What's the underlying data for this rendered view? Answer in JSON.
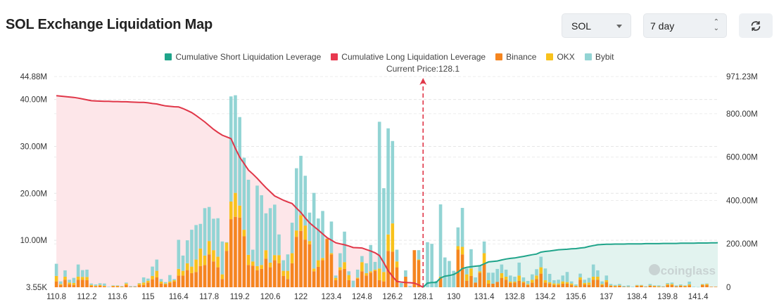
{
  "header": {
    "title": "SOL Exchange Liquidation Map",
    "symbol_select": {
      "value": "SOL",
      "icon": "caret-down-icon"
    },
    "range_select": {
      "value": "7 day",
      "icon": "up-down-chevron-icon"
    },
    "refresh_button": {
      "icon": "refresh-icon"
    }
  },
  "legend": [
    {
      "label": "Cumulative Short Liquidation Leverage",
      "color": "#1fa48a"
    },
    {
      "label": "Cumulative Long Liquidation Leverage",
      "color": "#e8384f"
    },
    {
      "label": "Binance",
      "color": "#f5851f"
    },
    {
      "label": "OKX",
      "color": "#f8c21c"
    },
    {
      "label": "Bybit",
      "color": "#92d4d4"
    }
  ],
  "current_price_label": "Current Price:128.1",
  "watermark": "coinglass",
  "chart_data": {
    "type": "bar",
    "stacked": true,
    "grid": true,
    "legend_position": "top",
    "x_tick_labels": [
      "110.8",
      "112.2",
      "113.6",
      "115",
      "116.4",
      "117.8",
      "119.2",
      "120.6",
      "122",
      "123.4",
      "124.8",
      "126.2",
      "128.1",
      "130",
      "131.4",
      "132.8",
      "134.2",
      "135.6",
      "137",
      "138.4",
      "139.8",
      "141.4"
    ],
    "current_price": 128.1,
    "y_left": {
      "min": 0,
      "max": 44.88,
      "unit": "M",
      "tick_labels": [
        "3.55K",
        "10.00M",
        "20.00M",
        "30.00M",
        "40.00M",
        "44.88M"
      ],
      "tick_values": [
        0,
        10,
        20,
        30,
        40,
        44.88
      ]
    },
    "y_right": {
      "min": 0,
      "max": 971.23,
      "unit": "M",
      "tick_labels": [
        "0",
        "200.00M",
        "400.00M",
        "600.00M",
        "800.00M",
        "971.23M"
      ],
      "tick_values": [
        0,
        200,
        400,
        600,
        800,
        971.23
      ]
    },
    "bars_binance_okx_bybit_M": [
      [
        1.25,
        1.15,
        2.6
      ],
      [
        0.5,
        0.2,
        0.55
      ],
      [
        1.6,
        0.65,
        1.35
      ],
      [
        0.6,
        0.4,
        0.6
      ],
      [
        0.5,
        0.4,
        1.1
      ],
      [
        1.6,
        0.65,
        2.6
      ],
      [
        1.6,
        0.6,
        1.45
      ],
      [
        1.5,
        0.7,
        1.55
      ],
      [
        0.3,
        0.2,
        0.3
      ],
      [
        0.2,
        0.1,
        0.3
      ],
      [
        0.3,
        0.2,
        0.35
      ],
      [
        0.2,
        0.1,
        0.5
      ],
      [
        0,
        0,
        0.1
      ],
      [
        0.2,
        0.1,
        0.1
      ],
      [
        0.2,
        0.1,
        0.1
      ],
      [
        0.1,
        0.05,
        0.1
      ],
      [
        0.5,
        0.3,
        0.2
      ],
      [
        0.1,
        0,
        0.15
      ],
      [
        0.1,
        0,
        0.15
      ],
      [
        0.5,
        0.3,
        0.1
      ],
      [
        0.5,
        0.5,
        1.1
      ],
      [
        1.0,
        0.4,
        0.45
      ],
      [
        1.7,
        0.7,
        2.0
      ],
      [
        2.1,
        1.4,
        2.4
      ],
      [
        0.8,
        0.4,
        0.55
      ],
      [
        0.6,
        0.2,
        0.3
      ],
      [
        0.9,
        0.3,
        1.4
      ],
      [
        1.2,
        0.3,
        0.25
      ],
      [
        2.5,
        1.4,
        6.2
      ],
      [
        2.5,
        1.0,
        3.25
      ],
      [
        3.65,
        1.45,
        4.9
      ],
      [
        3.0,
        1.4,
        7.85
      ],
      [
        3.25,
        2.65,
        7.35
      ],
      [
        4.5,
        3.75,
        5.25
      ],
      [
        4.75,
        2.0,
        10.1
      ],
      [
        7.0,
        2.85,
        7.25
      ],
      [
        5.5,
        2.4,
        6.7
      ],
      [
        4.25,
        2.25,
        8.2
      ],
      [
        1.75,
        1.0,
        7.0
      ],
      [
        7.75,
        1.75,
        0.1
      ],
      [
        14.5,
        3.75,
        22.4
      ],
      [
        15.0,
        5.1,
        20.8
      ],
      [
        14.85,
        2.55,
        18.85
      ],
      [
        10.85,
        1.4,
        15.35
      ],
      [
        4.75,
        2.15,
        16.0
      ],
      [
        4.6,
        0.9,
        2.5
      ],
      [
        3.6,
        0.9,
        17.15
      ],
      [
        3.9,
        0.85,
        14.85
      ],
      [
        6.1,
        1.8,
        7.85
      ],
      [
        4.25,
        1.0,
        11.6
      ],
      [
        5.75,
        1.1,
        10.75
      ],
      [
        5.1,
        1.75,
        4.4
      ],
      [
        2.4,
        1.1,
        2.25
      ],
      [
        1.75,
        1.75,
        3.5
      ],
      [
        5.1,
        2.15,
        6.5
      ],
      [
        10.75,
        1.35,
        13.25
      ],
      [
        12.0,
        3.35,
        12.65
      ],
      [
        10.15,
        3.0,
        10.6
      ],
      [
        9.15,
        0.7,
        6.05
      ],
      [
        3.4,
        0.6,
        16.1
      ],
      [
        4.35,
        1.4,
        8.9
      ],
      [
        5.75,
        0.5,
        10.0
      ],
      [
        10.25,
        0.1,
        0.05
      ],
      [
        7.0,
        0.25,
        6.75
      ],
      [
        1.5,
        0.5,
        0.5
      ],
      [
        3.65,
        0.6,
        3.0
      ],
      [
        3.9,
        1.45,
        6.5
      ],
      [
        1.5,
        1.1,
        0.8
      ],
      [
        0,
        0,
        1.4
      ],
      [
        1.85,
        0.2,
        1.7
      ],
      [
        3.4,
        1.95,
        1.3
      ],
      [
        2.5,
        0.5,
        2.1
      ],
      [
        3.1,
        0.3,
        5.6
      ],
      [
        3.5,
        0.25,
        1.65
      ],
      [
        1.5,
        2.5,
        31.25
      ],
      [
        1.25,
        2.0,
        17.85
      ],
      [
        7.75,
        3.5,
        22.6
      ],
      [
        7.6,
        6.0,
        17.55
      ],
      [
        4.25,
        1.25,
        2.5
      ],
      [
        0,
        0,
        0.9
      ],
      [
        2.25,
        0,
        1.35
      ],
      [
        0,
        0,
        0.25
      ],
      [
        7.9,
        0,
        0
      ],
      [
        5.75,
        0.15,
        2.0
      ],
      [
        0,
        0,
        0
      ],
      [
        0,
        0,
        9.6
      ],
      [
        0,
        0,
        9.25
      ],
      [
        0,
        0,
        1.35
      ],
      [
        2.0,
        0.25,
        15.4
      ],
      [
        0,
        0,
        6.35
      ],
      [
        0,
        0,
        5.6
      ],
      [
        0,
        0,
        3.5
      ],
      [
        8.0,
        0.75,
        4.0
      ],
      [
        7.0,
        1.6,
        8.3
      ],
      [
        1.4,
        1.35,
        1.25
      ],
      [
        2.4,
        1.6,
        4.1
      ],
      [
        1.0,
        0,
        1.1
      ],
      [
        3.1,
        0.3,
        1.2
      ],
      [
        5.0,
        2.25,
        2.5
      ],
      [
        0.75,
        0.75,
        1.6
      ],
      [
        0.75,
        0,
        2.35
      ],
      [
        1.15,
        0,
        2.75
      ],
      [
        2.0,
        1.0,
        1.85
      ],
      [
        1.6,
        0.65,
        1.5
      ],
      [
        0.9,
        0.3,
        1.3
      ],
      [
        1.0,
        0.2,
        1.05
      ],
      [
        1.35,
        1.15,
        2.75
      ],
      [
        1.0,
        0.2,
        0.9
      ],
      [
        0.5,
        0.2,
        0.65
      ],
      [
        1.0,
        0.6,
        1.15
      ],
      [
        1.75,
        0.75,
        1.35
      ],
      [
        2.9,
        1.35,
        2.25
      ],
      [
        1.0,
        0.5,
        2.5
      ],
      [
        0.75,
        0.3,
        1.8
      ],
      [
        0.5,
        0.3,
        0.7
      ],
      [
        0.5,
        0.3,
        0.8
      ],
      [
        0.75,
        0.5,
        1.25
      ],
      [
        0.75,
        0.35,
        2.15
      ],
      [
        0.5,
        0.3,
        0.45
      ],
      [
        0.2,
        0.1,
        0.3
      ],
      [
        1.6,
        0.5,
        0.8
      ],
      [
        0.6,
        0.3,
        0.7
      ],
      [
        0.5,
        0.5,
        1.0
      ],
      [
        1.6,
        0.65,
        2.6
      ],
      [
        1.6,
        0.65,
        1.35
      ],
      [
        0.5,
        0.2,
        0.55
      ],
      [
        1.1,
        0.4,
        1.0
      ],
      [
        0.3,
        0.1,
        0.3
      ],
      [
        0.2,
        0.1,
        0.2
      ],
      [
        0.3,
        0.1,
        0.3
      ],
      [
        0.1,
        0,
        0.2
      ],
      [
        0.1,
        0,
        0.3
      ],
      [
        0,
        0,
        0.1
      ],
      [
        0.3,
        0.1,
        0.1
      ],
      [
        0.3,
        0.1,
        0.1
      ],
      [
        0.1,
        0,
        0.1
      ],
      [
        0.3,
        0.1,
        0.3
      ],
      [
        0.2,
        0.1,
        0.1
      ],
      [
        0.1,
        0.1,
        0.2
      ],
      [
        0.1,
        0,
        0.1
      ],
      [
        0.5,
        0.2,
        0.2
      ],
      [
        0.5,
        0.2,
        0.3
      ],
      [
        0.2,
        0,
        0.2
      ],
      [
        0.3,
        0.1,
        0.2
      ],
      [
        0.2,
        0.1,
        0.1
      ],
      [
        0.4,
        0.2,
        0.6
      ],
      [
        0,
        0,
        0.1
      ],
      [
        0,
        0,
        0.05
      ],
      [
        0.5,
        0.1,
        0.1
      ],
      [
        0.5,
        0.2,
        0.1
      ],
      [
        0.1,
        0,
        0
      ],
      [
        0.1,
        0,
        0
      ]
    ],
    "cumulative_long_M": [
      883,
      881,
      879,
      877,
      875,
      872,
      868,
      864,
      860,
      859,
      858,
      857,
      857,
      856,
      856,
      855,
      855,
      854,
      853,
      852,
      852,
      850,
      847,
      845,
      840,
      836,
      834,
      832,
      831,
      824,
      815,
      805,
      792,
      777,
      762,
      745,
      728,
      714,
      701,
      693,
      685,
      640,
      599,
      570,
      540,
      522,
      502,
      480,
      459,
      440,
      421,
      411,
      401,
      393,
      386,
      365,
      345,
      320,
      297,
      280,
      264,
      246,
      229,
      217,
      205,
      200,
      196,
      190,
      183,
      182,
      181,
      174,
      167,
      159,
      146,
      113,
      76,
      50,
      27,
      24,
      22,
      21,
      19,
      11,
      0
    ],
    "cumulative_short_M": [
      0,
      19,
      22,
      22,
      43,
      51,
      54,
      59,
      70,
      86,
      92,
      95,
      97,
      99,
      108,
      117,
      119,
      121,
      126,
      130,
      133,
      135,
      139,
      142,
      146,
      150,
      153,
      162,
      165,
      167,
      170,
      173,
      174,
      175,
      177,
      178,
      181,
      183,
      188,
      192,
      196,
      197,
      198,
      198,
      199,
      199,
      199,
      200,
      200,
      200,
      200,
      201,
      201,
      201,
      201,
      202,
      202,
      202,
      202,
      203,
      203,
      203,
      203,
      204,
      204,
      204,
      205,
      205
    ]
  }
}
